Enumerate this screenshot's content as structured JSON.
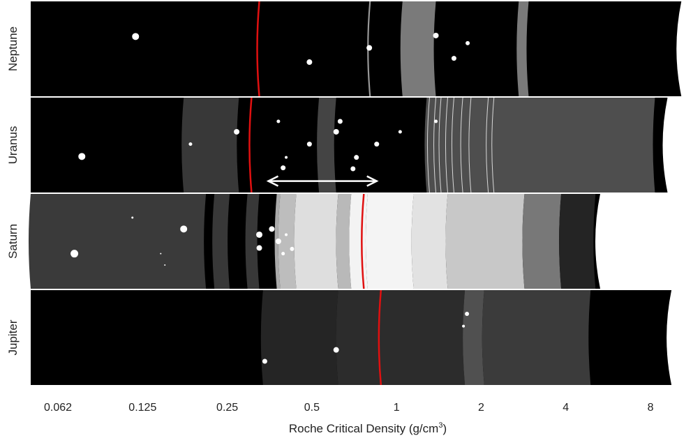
{
  "chart_data": {
    "type": "other",
    "xlabel": "Roche Critical Density (g/cm3)",
    "xlabel_main": "Roche Critical Density (g/cm",
    "xlabel_sup": "3",
    "xlabel_tail": ")",
    "xscale": "log2",
    "xlim": [
      0.05,
      12.0
    ],
    "xticks": [
      0.0625,
      0.125,
      0.25,
      0.5,
      1,
      2,
      4,
      8
    ],
    "xtick_labels": [
      "0.062",
      "0.125",
      "0.25",
      "0.5",
      "1",
      "2",
      "4",
      "8"
    ],
    "panels": [
      {
        "name": "Neptune",
        "planet_edge": 10.3,
        "rings": [
          {
            "from": 0.8,
            "to": 0.81,
            "gray": "#999999"
          },
          {
            "from": 1.05,
            "to": 1.38,
            "gray": "#7a7a7a"
          },
          {
            "from": 2.72,
            "to": 2.95,
            "gray": "#7a7a7a"
          }
        ],
        "moons": [
          {
            "x": 0.118,
            "y": 0.37,
            "r": 5
          },
          {
            "x": 0.49,
            "y": 0.64,
            "r": 4
          },
          {
            "x": 0.8,
            "y": 0.49,
            "r": 4
          },
          {
            "x": 1.38,
            "y": 0.36,
            "r": 4
          },
          {
            "x": 1.6,
            "y": 0.6,
            "r": 3.5
          },
          {
            "x": 1.79,
            "y": 0.44,
            "r": 3
          }
        ],
        "critical_line": 0.325
      },
      {
        "name": "Uranus",
        "planet_edge": 9.2,
        "rings": [
          {
            "from": 0.175,
            "to": 0.275,
            "gray": "#383838",
            "fade": true
          },
          {
            "from": 0.53,
            "to": 0.61,
            "gray": "#444444",
            "fade": true
          },
          {
            "from": 1.28,
            "to": 8.3,
            "gray": "#4e4e4e",
            "fade": true
          }
        ],
        "narrow_rings": [
          1.31,
          1.38,
          1.44,
          1.52,
          1.6,
          1.72,
          1.84,
          2.12,
          2.22
        ],
        "moons": [
          {
            "x": 0.076,
            "y": 0.62,
            "r": 5
          },
          {
            "x": 0.185,
            "y": 0.49,
            "r": 2.5
          },
          {
            "x": 0.27,
            "y": 0.36,
            "r": 4
          },
          {
            "x": 0.395,
            "y": 0.74,
            "r": 3.5
          },
          {
            "x": 0.405,
            "y": 0.63,
            "r": 2
          },
          {
            "x": 0.38,
            "y": 0.25,
            "r": 2.5
          },
          {
            "x": 0.49,
            "y": 0.49,
            "r": 3.5
          },
          {
            "x": 0.61,
            "y": 0.36,
            "r": 4
          },
          {
            "x": 0.63,
            "y": 0.25,
            "r": 3.5
          },
          {
            "x": 0.7,
            "y": 0.75,
            "r": 3.5
          },
          {
            "x": 0.72,
            "y": 0.63,
            "r": 3.5
          },
          {
            "x": 0.85,
            "y": 0.49,
            "r": 3.5
          },
          {
            "x": 1.03,
            "y": 0.36,
            "r": 2.5
          },
          {
            "x": 1.38,
            "y": 0.25,
            "r": 2.5
          }
        ],
        "critical_line": 0.305,
        "arrow": {
          "from": 0.35,
          "to": 0.85
        }
      },
      {
        "name": "Saturn",
        "planet_edge": 5.3,
        "rings": [
          {
            "from": 0.05,
            "to": 0.21,
            "gray": "#3a3a3a",
            "fade": true
          },
          {
            "from": 0.225,
            "to": 0.255,
            "gray": "#383838",
            "fade": true
          },
          {
            "from": 0.295,
            "to": 0.325,
            "gray": "#383838",
            "fade": true
          },
          {
            "from": 0.375,
            "to": 0.386,
            "gray": "#aaaaaa"
          },
          {
            "from": 0.386,
            "to": 0.44,
            "gray": "#bdbdbd"
          },
          {
            "from": 0.44,
            "to": 0.62,
            "gray": "#dedede"
          },
          {
            "from": 0.62,
            "to": 0.69,
            "gray": "#b9b9b9"
          },
          {
            "from": 0.69,
            "to": 0.79,
            "gray": "#f3f3f3"
          },
          {
            "from": 0.79,
            "to": 1.15,
            "gray": "#f4f4f4"
          },
          {
            "from": 1.15,
            "to": 1.52,
            "gray": "#e2e2e2"
          },
          {
            "from": 1.52,
            "to": 2.85,
            "gray": "#c8c8c8"
          },
          {
            "from": 2.85,
            "to": 3.85,
            "gray": "#787878"
          },
          {
            "from": 3.85,
            "to": 5.1,
            "gray": "#242424"
          }
        ],
        "moons": [
          {
            "x": 0.0715,
            "y": 0.63,
            "r": 5.5
          },
          {
            "x": 0.115,
            "y": 0.25,
            "r": 1.5
          },
          {
            "x": 0.145,
            "y": 0.63,
            "r": 1
          },
          {
            "x": 0.15,
            "y": 0.75,
            "r": 1
          },
          {
            "x": 0.175,
            "y": 0.37,
            "r": 5
          },
          {
            "x": 0.325,
            "y": 0.43,
            "r": 4.5
          },
          {
            "x": 0.325,
            "y": 0.57,
            "r": 4
          },
          {
            "x": 0.36,
            "y": 0.37,
            "r": 4
          },
          {
            "x": 0.38,
            "y": 0.5,
            "r": 4
          },
          {
            "x": 0.395,
            "y": 0.63,
            "r": 2.5
          },
          {
            "x": 0.405,
            "y": 0.43,
            "r": 2
          },
          {
            "x": 0.425,
            "y": 0.58,
            "r": 3
          }
        ],
        "critical_line": 0.765
      },
      {
        "name": "Jupiter",
        "planet_edge": 9.5,
        "rings": [
          {
            "from": 0.335,
            "to": 0.62,
            "gray": "#252525"
          },
          {
            "from": 0.62,
            "to": 1.75,
            "gray": "#2c2c2c"
          },
          {
            "from": 1.75,
            "to": 2.05,
            "gray": "#505050"
          },
          {
            "from": 2.05,
            "to": 4.9,
            "gray": "#3b3b3b"
          }
        ],
        "moons": [
          {
            "x": 0.34,
            "y": 0.75,
            "r": 3.5
          },
          {
            "x": 0.61,
            "y": 0.63,
            "r": 4
          },
          {
            "x": 1.78,
            "y": 0.25,
            "r": 3
          },
          {
            "x": 1.73,
            "y": 0.38,
            "r": 2
          }
        ],
        "critical_line": 0.88
      }
    ]
  }
}
